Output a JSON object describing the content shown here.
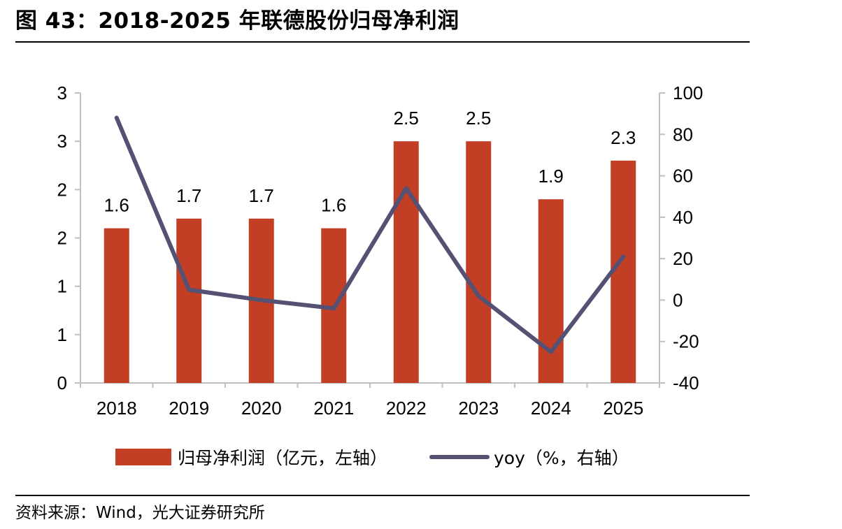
{
  "header": {
    "title": "图 43：2018-2025 年联德股份归母净利润"
  },
  "footer": {
    "source": "资料来源：Wind，光大证券研究所"
  },
  "chart_data": {
    "type": "bar",
    "categories": [
      "2018",
      "2019",
      "2020",
      "2021",
      "2022",
      "2023",
      "2024",
      "2025"
    ],
    "series": [
      {
        "name": "归母净利润（亿元，左轴）",
        "type": "bar",
        "axis": "left",
        "color": "#C23F26",
        "values": [
          1.6,
          1.7,
          1.7,
          1.6,
          2.5,
          2.5,
          1.9,
          2.3
        ],
        "labels": [
          "1.6",
          "1.7",
          "1.7",
          "1.6",
          "2.5",
          "2.5",
          "1.9",
          "2.3"
        ]
      },
      {
        "name": "yoy（%，右轴）",
        "type": "line",
        "axis": "right",
        "color": "#545172",
        "values": [
          88,
          5,
          0,
          -4,
          54,
          2,
          -25,
          21
        ]
      }
    ],
    "left_axis": {
      "ylim": [
        0,
        3
      ],
      "tick_labels": [
        "0",
        "1",
        "1",
        "2",
        "2",
        "3",
        "3"
      ]
    },
    "right_axis": {
      "ylim": [
        -40,
        100
      ],
      "tick_labels": [
        "-40",
        "-20",
        "0",
        "20",
        "40",
        "60",
        "80",
        "100"
      ]
    },
    "legend": "bottom",
    "grid": false
  }
}
